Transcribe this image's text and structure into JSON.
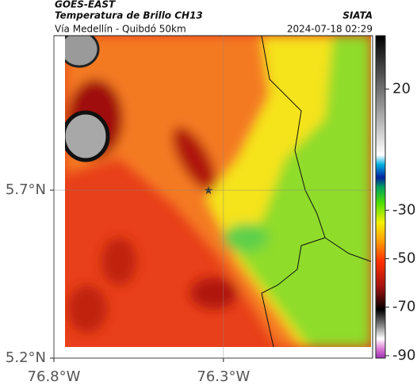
{
  "header": {
    "satellite": "GOES-EAST",
    "title": "Temperatura de Brillo CH13",
    "subtitle": "Vía Medellín - Quibdó 50km",
    "source": "SIATA",
    "timestamp": "2024-07-18 02:29"
  },
  "map": {
    "xlim": [
      -76.8,
      -75.86
    ],
    "ylim": [
      5.2,
      6.16
    ],
    "xticks": [
      {
        "value": -76.8,
        "label": "76.8°W"
      },
      {
        "value": -76.3,
        "label": "76.3°W"
      }
    ],
    "yticks": [
      {
        "value": 5.7,
        "label": "5.7°N"
      },
      {
        "value": 5.2,
        "label": "5.2°N"
      }
    ],
    "grid": true
  },
  "colorbar": {
    "lim": [
      -91,
      42
    ],
    "ticks": [
      20,
      -30,
      -50,
      -70,
      -90
    ]
  }
}
